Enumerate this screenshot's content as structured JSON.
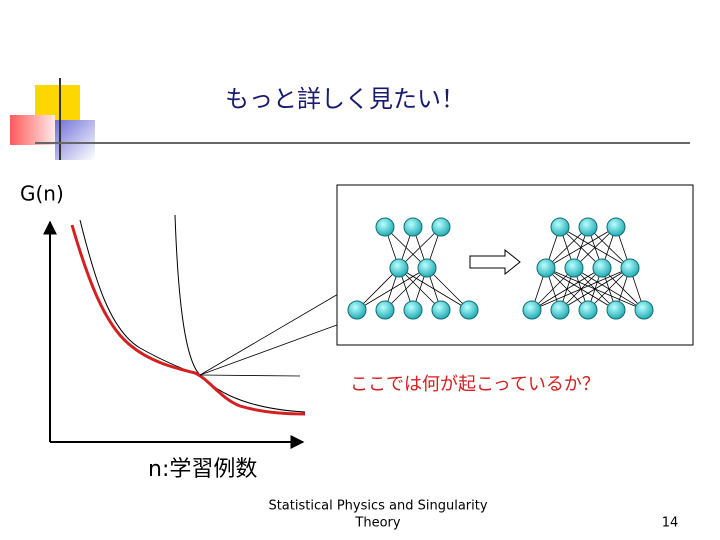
{
  "title": "もっと詳しく見たい！",
  "y_axis_label": "G(n)",
  "x_axis_label": "n:学習例数",
  "annotation": "ここでは何が起こっているか？",
  "footer": {
    "lines": [
      "Statistical Physics and Singularity",
      "Theory"
    ],
    "page_number": "14"
  }
}
